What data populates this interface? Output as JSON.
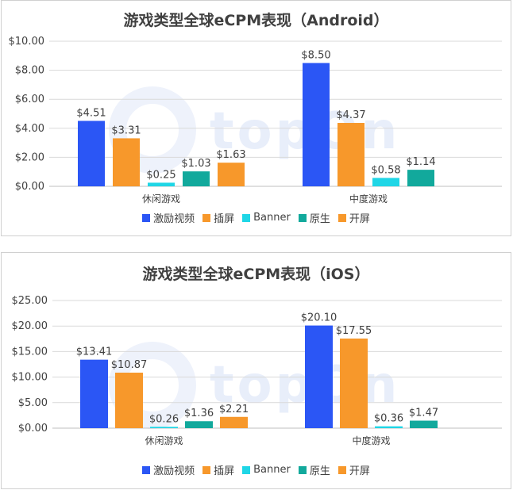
{
  "colors": {
    "激励视频": "#2b56f5",
    "插屏": "#f7982b",
    "Banner": "#1fd6e6",
    "原生": "#12a99c",
    "开屏": "#f7982b"
  },
  "watermark_text": "topOn",
  "chart_data": [
    {
      "type": "bar",
      "title": "游戏类型全球eCPM表现（Android）",
      "categories": [
        "休闲游戏",
        "中度游戏"
      ],
      "yticks": [
        "$0.00",
        "$2.00",
        "$4.00",
        "$6.00",
        "$8.00",
        "$10.00"
      ],
      "ylim": [
        0,
        10
      ],
      "grid": true,
      "legend_position": "bottom",
      "series": [
        {
          "name": "激励视频",
          "values": [
            4.51,
            8.5
          ],
          "labels": [
            "$4.51",
            "$8.50"
          ]
        },
        {
          "name": "插屏",
          "values": [
            3.31,
            4.37
          ],
          "labels": [
            "$3.31",
            "$4.37"
          ]
        },
        {
          "name": "Banner",
          "values": [
            0.25,
            0.58
          ],
          "labels": [
            "$0.25",
            "$0.58"
          ]
        },
        {
          "name": "原生",
          "values": [
            1.03,
            1.14
          ],
          "labels": [
            "$1.03",
            "$1.14"
          ]
        },
        {
          "name": "开屏",
          "values": [
            1.63,
            null
          ],
          "labels": [
            "$1.63",
            ""
          ]
        }
      ]
    },
    {
      "type": "bar",
      "title": "游戏类型全球eCPM表现（iOS）",
      "categories": [
        "休闲游戏",
        "中度游戏"
      ],
      "yticks": [
        "$0.00",
        "$5.00",
        "$10.00",
        "$15.00",
        "$20.00",
        "$25.00"
      ],
      "ylim": [
        0,
        25
      ],
      "grid": true,
      "legend_position": "bottom",
      "series": [
        {
          "name": "激励视频",
          "values": [
            13.41,
            20.1
          ],
          "labels": [
            "$13.41",
            "$20.10"
          ]
        },
        {
          "name": "插屏",
          "values": [
            10.87,
            17.55
          ],
          "labels": [
            "$10.87",
            "$17.55"
          ]
        },
        {
          "name": "Banner",
          "values": [
            0.26,
            0.36
          ],
          "labels": [
            "$0.26",
            "$0.36"
          ]
        },
        {
          "name": "原生",
          "values": [
            1.36,
            1.47
          ],
          "labels": [
            "$1.36",
            "$1.47"
          ]
        },
        {
          "name": "开屏",
          "values": [
            2.21,
            null
          ],
          "labels": [
            "$2.21",
            ""
          ]
        }
      ]
    }
  ]
}
